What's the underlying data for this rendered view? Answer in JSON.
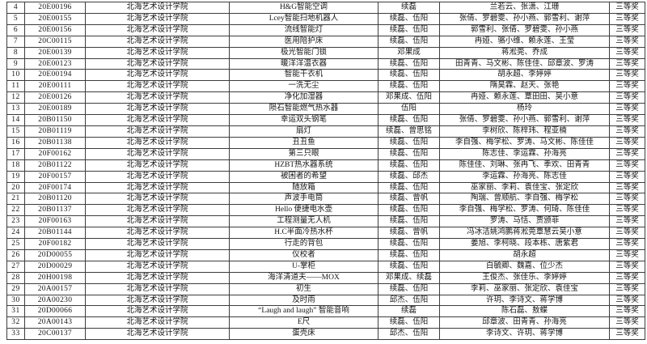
{
  "table": {
    "columns": [
      {
        "key": "no"
      },
      {
        "key": "id"
      },
      {
        "key": "institution"
      },
      {
        "key": "project"
      },
      {
        "key": "advisors"
      },
      {
        "key": "students"
      },
      {
        "key": "award"
      }
    ],
    "rows": [
      {
        "no": "4",
        "id": "20E00196",
        "institution": "北海艺术设计学院",
        "project": "H&G智能空调",
        "advisors": "续磊",
        "students": "兰若云、张潇、江珊",
        "award": "三等奖"
      },
      {
        "no": "5",
        "id": "20E00155",
        "institution": "北海艺术设计学院",
        "project": "Lcey智能扫地机器人",
        "advisors": "续磊、伍阳",
        "students": "张倩、罗碧雯、孙小燕、郭雪利、谢萍",
        "award": "三等奖"
      },
      {
        "no": "6",
        "id": "20E00156",
        "institution": "北海艺术设计学院",
        "project": "流线智能灯",
        "advisors": "续磊、伍阳",
        "students": "郭雪利、张倩、罗碧雯、孙小燕",
        "award": "三等奖"
      },
      {
        "no": "7",
        "id": "20C00115",
        "institution": "北海艺术设计学院",
        "project": "医用陪护床",
        "advisors": "续磊、伍阳",
        "students": "冉娅、骆小维、赖永莲、王莹",
        "award": "三等奖"
      },
      {
        "no": "8",
        "id": "20E00139",
        "institution": "北海艺术设计学院",
        "project": "极光智能门锁",
        "advisors": "邓果成",
        "students": "蒋淞莞、乔成",
        "award": "三等奖"
      },
      {
        "no": "9",
        "id": "20E00123",
        "institution": "北海艺术设计学院",
        "project": "暖洋洋温衣器",
        "advisors": "续磊、伍阳",
        "students": "田青青、马文彬、陈佳佳、邱章波、罗涛",
        "award": "三等奖"
      },
      {
        "no": "10",
        "id": "20E00194",
        "institution": "北海艺术设计学院",
        "project": "智能干衣机",
        "advisors": "续磊、伍阳",
        "students": "胡永超、李婷婷",
        "award": "三等奖"
      },
      {
        "no": "11",
        "id": "20E00111",
        "institution": "北海艺术设计学院",
        "project": "一洗无尘",
        "advisors": "续磊、伍阳",
        "students": "隋昊霖、赵天、张艳",
        "award": "三等奖"
      },
      {
        "no": "12",
        "id": "20E00126",
        "institution": "北海艺术设计学院",
        "project": "净化加湿器",
        "advisors": "邓果成、伍阳",
        "students": "冉娅、赖永莲、覃田田、吴小意",
        "award": "三等奖"
      },
      {
        "no": "13",
        "id": "20E00189",
        "institution": "北海艺术设计学院",
        "project": "陨石智能燃气热水器",
        "advisors": "伍阳",
        "students": "杨玲",
        "award": "三等奖"
      },
      {
        "no": "14",
        "id": "20B01150",
        "institution": "北海艺术设计学院",
        "project": "幸运双头钢笔",
        "advisors": "续磊、伍阳",
        "students": "张倩、罗碧雯、孙小燕、郭雪利、谢萍",
        "award": "三等奖"
      },
      {
        "no": "15",
        "id": "20B01119",
        "institution": "北海艺术设计学院",
        "project": "扇灯",
        "advisors": "续磊、曾思铭",
        "students": "李树欣、陈梓玮、程亚楠",
        "award": "三等奖"
      },
      {
        "no": "16",
        "id": "20B01138",
        "institution": "北海艺术设计学院",
        "project": "丑丑鱼",
        "advisors": "续磊、伍阳",
        "students": "李自强、梅学松、罗涛、马文彬、陈佳佳",
        "award": "三等奖"
      },
      {
        "no": "17",
        "id": "20F00162",
        "institution": "北海艺术设计学院",
        "project": "第三只眼",
        "advisors": "续磊、伍阳",
        "students": "陈志佳、李运霖、孙海亮",
        "award": "三等奖"
      },
      {
        "no": "18",
        "id": "20B01122",
        "institution": "北海艺术设计学院",
        "project": "HZBT热水器系统",
        "advisors": "续磊、伍阳",
        "students": "陈佳佳、刘琳、张冉飞、季欢、田青青",
        "award": "三等奖"
      },
      {
        "no": "19",
        "id": "20F00157",
        "institution": "北海艺术设计学院",
        "project": "被困者的希望",
        "advisors": "续磊、邱杰",
        "students": "李运霖、孙海亮、陈志佳",
        "award": "三等奖"
      },
      {
        "no": "20",
        "id": "20F00174",
        "institution": "北海艺术设计学院",
        "project": "随放箱",
        "advisors": "续磊、伍阳",
        "students": "巫家丽、李莉、袁佳宝、张定欣",
        "award": "三等奖"
      },
      {
        "no": "21",
        "id": "20B01120",
        "institution": "北海艺术设计学院",
        "project": "声波手电筒",
        "advisors": "续磊、曾帆",
        "students": "陶瑞、曾顺航、李自强、梅学松",
        "award": "三等奖"
      },
      {
        "no": "22",
        "id": "20B01137",
        "institution": "北海艺术设计学院",
        "project": "Hello 便捷电水壶",
        "advisors": "续磊、伍阳",
        "students": "李自强、梅学松、罗涛、何琦、陈佳佳",
        "award": "三等奖"
      },
      {
        "no": "23",
        "id": "20F00163",
        "institution": "北海艺术设计学院",
        "project": "工程测量无人机",
        "advisors": "续磊、伍阳",
        "students": "罗涛、马恬、贾颁菲",
        "award": "三等奖"
      },
      {
        "no": "24",
        "id": "20B01144",
        "institution": "北海艺术设计学院",
        "project": "H.C半面冷热水杯",
        "advisors": "续磊、曾帆",
        "students": "冯冰洁姚鸿鹏蒋淞莞覃慧云吴小意",
        "award": "三等奖"
      },
      {
        "no": "25",
        "id": "20F00182",
        "institution": "北海艺术设计学院",
        "project": "行走的背包",
        "advisors": "续磊、伍阳",
        "students": "姜旭、李柯晓、段本栋、唐紫君",
        "award": "三等奖"
      },
      {
        "no": "26",
        "id": "20D00055",
        "institution": "北海艺术设计学院",
        "project": "仪校者",
        "advisors": "续磊、伍阳",
        "students": "胡永超",
        "award": "三等奖"
      },
      {
        "no": "27",
        "id": "20D00029",
        "institution": "北海艺术设计学院",
        "project": "U-掌柜",
        "advisors": "续磊、伍阳",
        "students": "白毓卿、魏嘉、位少杰",
        "award": "三等奖"
      },
      {
        "no": "28",
        "id": "20H00198",
        "institution": "北海艺术设计学院",
        "project": "海洋清道夫——MOX",
        "advisors": "邓果成、续磊",
        "students": "王俊杰、张佳乐、李婷婷",
        "award": "三等奖"
      },
      {
        "no": "29",
        "id": "20A00157",
        "institution": "北海艺术设计学院",
        "project": "初生",
        "advisors": "续磊、伍阳",
        "students": "李莉、巫家丽、张定欣、袁佳宝",
        "award": "三等奖"
      },
      {
        "no": "30",
        "id": "20A00230",
        "institution": "北海艺术设计学院",
        "project": "及时雨",
        "advisors": "邱杰、伍阳",
        "students": "许玥、李诗文、蒋学博",
        "award": "三等奖"
      },
      {
        "no": "31",
        "id": "20D00066",
        "institution": "北海艺术设计学院",
        "project": "“Laugh and laugh” 智能音响",
        "advisors": "续磊",
        "students": "陈石磊、敖蝶",
        "award": "三等奖"
      },
      {
        "no": "32",
        "id": "20A00143",
        "institution": "北海艺术设计学院",
        "project": "E尺",
        "advisors": "续磊、伍阳",
        "students": "邱章波、田青青、孙海亮",
        "award": "三等奖"
      },
      {
        "no": "33",
        "id": "20C00137",
        "institution": "北海艺术设计学院",
        "project": "蛋壳床",
        "advisors": "邱杰、伍阳",
        "students": "李诗文、许玥、蒋学博",
        "award": "三等奖"
      }
    ]
  }
}
